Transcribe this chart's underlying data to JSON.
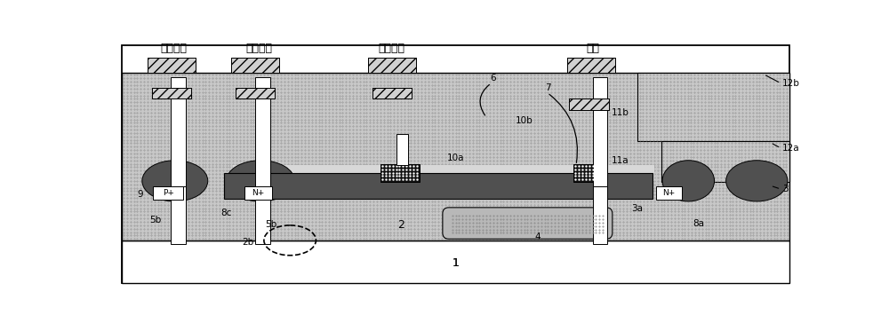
{
  "fig_w": 10.0,
  "fig_h": 3.64,
  "dpi": 100,
  "c_white": "#ffffff",
  "c_light": "#c8c8c8",
  "c_stipple": "#c0c0c0",
  "c_medium": "#b0b0b0",
  "c_dark": "#505050",
  "c_black": "#111111",
  "c_buried": "#b8b8b8",
  "labels_cn": {
    "gate2": "第二栅极",
    "source2": "第二源极",
    "gate1": "第一栅极",
    "drain": "漏极"
  }
}
